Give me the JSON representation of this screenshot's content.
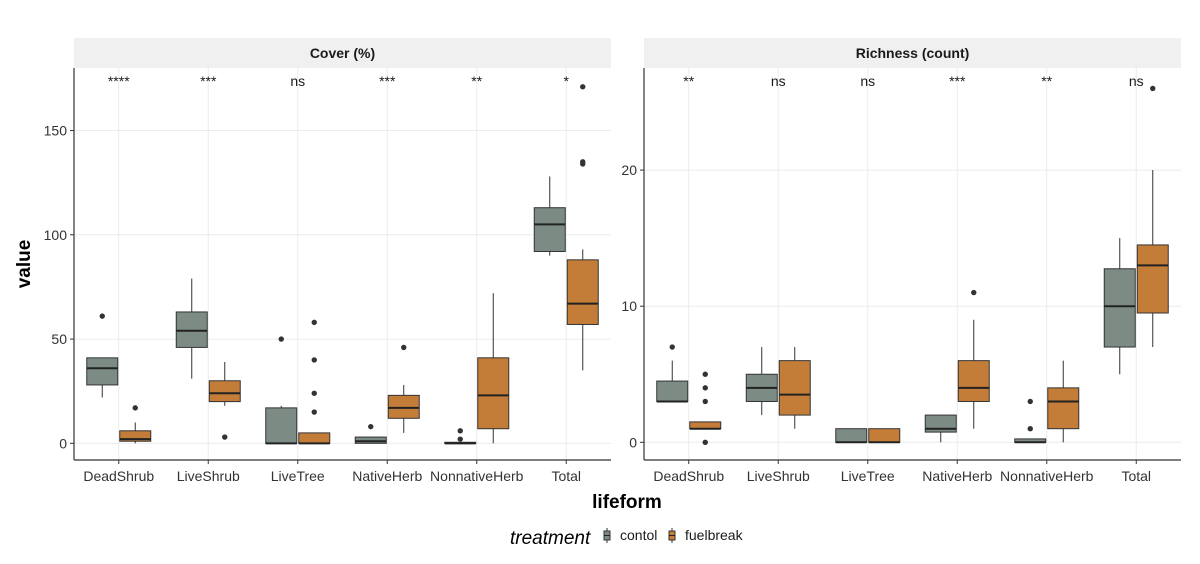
{
  "colors": {
    "contol": "#7c8c85",
    "fuelbreak": "#c47d38",
    "strip_bg": "#f0f0f0",
    "grid": "#ebebeb"
  },
  "chart_data": {
    "type": "boxplot",
    "xlabel": "lifeform",
    "ylabel": "value",
    "categories": [
      "DeadShrub",
      "LiveShrub",
      "LiveTree",
      "NativeHerb",
      "NonnativeHerb",
      "Total"
    ],
    "legend": {
      "title": "treatment",
      "position": "bottom",
      "entries": [
        "contol",
        "fuelbreak"
      ]
    },
    "grid": true,
    "panels": [
      {
        "title": "Cover (%)",
        "ylim": [
          -8,
          180
        ],
        "yticks": [
          0,
          50,
          100,
          150
        ],
        "significance": [
          "****",
          "***",
          "ns",
          "***",
          "**",
          "*"
        ],
        "boxes": {
          "contol": [
            {
              "min": 22,
              "q1": 28,
              "median": 36,
              "q3": 41,
              "max": 41,
              "outliers": [
                61
              ]
            },
            {
              "min": 31,
              "q1": 46,
              "median": 54,
              "q3": 63,
              "max": 79,
              "outliers": []
            },
            {
              "min": 0,
              "q1": 0,
              "median": 0,
              "q3": 17,
              "max": 18,
              "outliers": [
                50
              ]
            },
            {
              "min": 0,
              "q1": 0,
              "median": 1,
              "q3": 3,
              "max": 3,
              "outliers": [
                8
              ]
            },
            {
              "min": 0,
              "q1": 0,
              "median": 0,
              "q3": 0.5,
              "max": 0.5,
              "outliers": [
                2,
                6
              ]
            },
            {
              "min": 90,
              "q1": 92,
              "median": 105,
              "q3": 113,
              "max": 128,
              "outliers": []
            }
          ],
          "fuelbreak": [
            {
              "min": 0,
              "q1": 1,
              "median": 2,
              "q3": 6,
              "max": 10,
              "outliers": [
                17
              ]
            },
            {
              "min": 18,
              "q1": 20,
              "median": 24,
              "q3": 30,
              "max": 39,
              "outliers": [
                3
              ]
            },
            {
              "min": 0,
              "q1": 0,
              "median": 0,
              "q3": 5,
              "max": 5,
              "outliers": [
                15,
                24,
                40,
                58
              ]
            },
            {
              "min": 5,
              "q1": 12,
              "median": 17,
              "q3": 23,
              "max": 28,
              "outliers": [
                46
              ]
            },
            {
              "min": 0,
              "q1": 7,
              "median": 23,
              "q3": 41,
              "max": 72,
              "outliers": []
            },
            {
              "min": 35,
              "q1": 57,
              "median": 67,
              "q3": 88,
              "max": 93,
              "outliers": [
                134,
                135,
                171
              ]
            }
          ]
        }
      },
      {
        "title": "Richness (count)",
        "ylim": [
          -1.3,
          27.5
        ],
        "yticks": [
          0,
          10,
          20
        ],
        "significance": [
          "**",
          "ns",
          "ns",
          "***",
          "**",
          "ns"
        ],
        "boxes": {
          "contol": [
            {
              "min": 3,
              "q1": 3,
              "median": 3,
              "q3": 4.5,
              "max": 6,
              "outliers": [
                7
              ]
            },
            {
              "min": 2,
              "q1": 3,
              "median": 4,
              "q3": 5,
              "max": 7,
              "outliers": []
            },
            {
              "min": 0,
              "q1": 0,
              "median": 0,
              "q3": 1,
              "max": 1,
              "outliers": []
            },
            {
              "min": 0,
              "q1": 0.75,
              "median": 1,
              "q3": 2,
              "max": 2,
              "outliers": []
            },
            {
              "min": 0,
              "q1": 0,
              "median": 0,
              "q3": 0.25,
              "max": 0.25,
              "outliers": [
                1,
                3
              ]
            },
            {
              "min": 5,
              "q1": 7,
              "median": 10,
              "q3": 12.75,
              "max": 15,
              "outliers": []
            }
          ],
          "fuelbreak": [
            {
              "min": 1,
              "q1": 1,
              "median": 1,
              "q3": 1.5,
              "max": 1.5,
              "outliers": [
                0,
                3,
                4,
                5
              ]
            },
            {
              "min": 1,
              "q1": 2,
              "median": 3.5,
              "q3": 6,
              "max": 7,
              "outliers": []
            },
            {
              "min": 0,
              "q1": 0,
              "median": 0,
              "q3": 1,
              "max": 1,
              "outliers": []
            },
            {
              "min": 1,
              "q1": 3,
              "median": 4,
              "q3": 6,
              "max": 9,
              "outliers": [
                11
              ]
            },
            {
              "min": 0,
              "q1": 1,
              "median": 3,
              "q3": 4,
              "max": 6,
              "outliers": []
            },
            {
              "min": 7,
              "q1": 9.5,
              "median": 13,
              "q3": 14.5,
              "max": 20,
              "outliers": [
                26
              ]
            }
          ]
        }
      }
    ]
  }
}
